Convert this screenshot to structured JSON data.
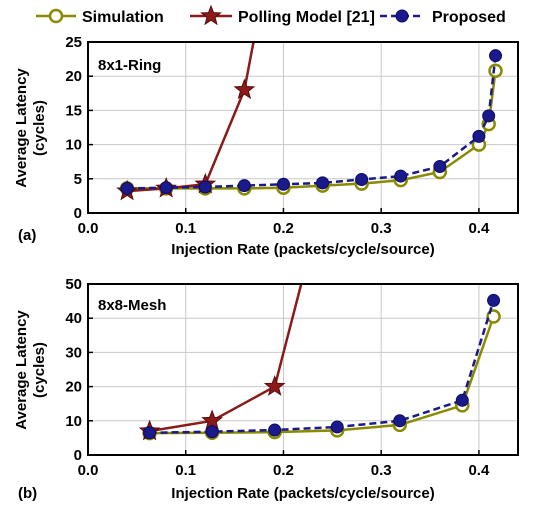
{
  "legend": {
    "placement": "top",
    "entries": [
      {
        "label": "Simulation",
        "color": "#8a8a00",
        "marker": "hollow-circle",
        "dash": "solid"
      },
      {
        "label": "Polling Model [21]",
        "color": "#8b1a1a",
        "marker": "star",
        "dash": "solid"
      },
      {
        "label": "Proposed",
        "color": "#1a1a8c",
        "marker": "filled-circle",
        "dash": "dashed"
      }
    ]
  },
  "chart_data": [
    {
      "type": "line",
      "panel_label": "(a)",
      "title": "8x1-Ring",
      "xlabel": "Injection Rate (packets/cycle/source)",
      "ylabel": "Average Latency (cycles)",
      "xlim": [
        0.0,
        0.44
      ],
      "ylim": [
        0,
        25
      ],
      "xticks": [
        "0.0",
        "0.1",
        "0.2",
        "0.3",
        "0.4"
      ],
      "yticks": [
        "0",
        "5",
        "10",
        "15",
        "20",
        "25"
      ],
      "grid": true,
      "series": [
        {
          "name": "Simulation",
          "x": [
            0.04,
            0.08,
            0.12,
            0.16,
            0.2,
            0.24,
            0.28,
            0.32,
            0.36,
            0.4,
            0.41,
            0.417
          ],
          "y": [
            3.6,
            3.6,
            3.6,
            3.6,
            3.7,
            4.0,
            4.3,
            4.8,
            6.0,
            10.0,
            13.0,
            20.8
          ]
        },
        {
          "name": "Polling Model [21]",
          "x": [
            0.04,
            0.08,
            0.12,
            0.16,
            0.172
          ],
          "y": [
            3.2,
            3.6,
            4.2,
            18.0,
            27.0
          ]
        },
        {
          "name": "Proposed",
          "x": [
            0.04,
            0.08,
            0.12,
            0.16,
            0.2,
            0.24,
            0.28,
            0.32,
            0.36,
            0.4,
            0.41,
            0.417
          ],
          "y": [
            3.6,
            3.7,
            3.8,
            4.0,
            4.2,
            4.4,
            4.9,
            5.4,
            6.8,
            11.2,
            14.2,
            23.0
          ]
        }
      ]
    },
    {
      "type": "line",
      "panel_label": "(b)",
      "title": "8x8-Mesh",
      "xlabel": "Injection Rate (packets/cycle/source)",
      "ylabel": "Average Latency (cycles)",
      "xlim": [
        0.0,
        0.44
      ],
      "ylim": [
        0,
        50
      ],
      "xticks": [
        "0.0",
        "0.1",
        "0.2",
        "0.3",
        "0.4"
      ],
      "yticks": [
        "0",
        "10",
        "20",
        "30",
        "40",
        "50"
      ],
      "grid": true,
      "series": [
        {
          "name": "Simulation",
          "x": [
            0.063,
            0.127,
            0.191,
            0.255,
            0.319,
            0.383,
            0.415
          ],
          "y": [
            6.4,
            6.5,
            6.7,
            7.2,
            8.8,
            14.5,
            40.5
          ]
        },
        {
          "name": "Polling Model [21]",
          "x": [
            0.063,
            0.127,
            0.191,
            0.22
          ],
          "y": [
            7.0,
            10.0,
            20.0,
            52.0
          ]
        },
        {
          "name": "Proposed",
          "x": [
            0.063,
            0.127,
            0.191,
            0.255,
            0.319,
            0.383,
            0.415
          ],
          "y": [
            6.5,
            6.8,
            7.3,
            8.2,
            10.0,
            16.0,
            45.2
          ]
        }
      ]
    }
  ]
}
